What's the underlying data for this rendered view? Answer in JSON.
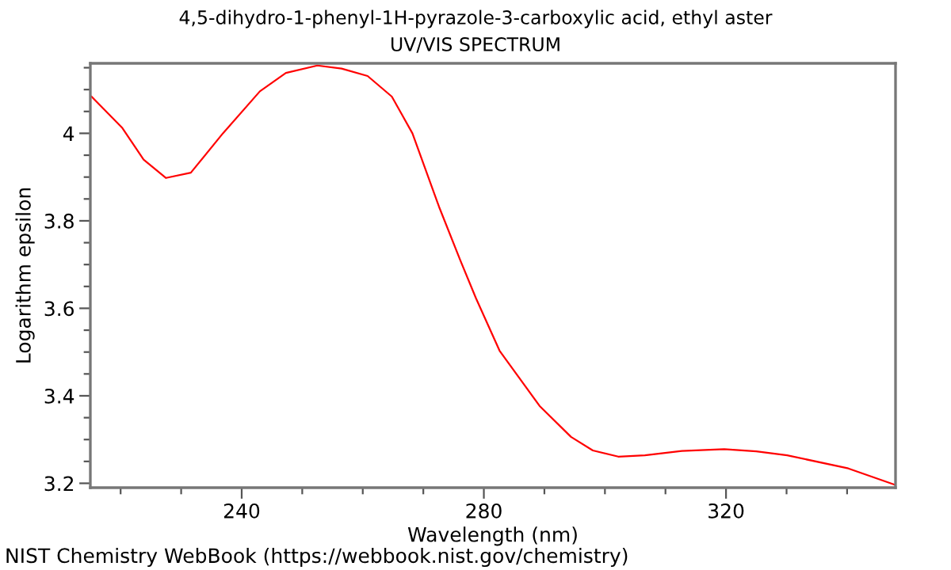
{
  "chart_data": {
    "type": "line",
    "title": "4,5-dihydro-1-phenyl-1H-pyrazole-3-carboxylic acid, ethyl aster",
    "subtitle": "UV/VIS SPECTRUM",
    "xlabel": "Wavelength (nm)",
    "ylabel": "Logarithm epsilon",
    "annotations": [
      "NIST Chemistry WebBook (https://webbook.nist.gov/chemistry)"
    ],
    "series": [
      {
        "color": "#ff0000",
        "x": [
          215.2,
          220.3,
          223.8,
          227.5,
          231.6,
          236.9,
          243,
          247.3,
          252.5,
          256.5,
          260.8,
          264.8,
          268.2,
          272.6,
          276.1,
          278.7,
          282.6,
          289.2,
          294.4,
          298,
          302.2,
          306.6,
          312.7,
          319.7,
          325,
          330.1,
          340.2,
          348
        ],
        "values": [
          4.084,
          4.012,
          3.94,
          3.898,
          3.91,
          4.0,
          4.096,
          4.138,
          4.155,
          4.148,
          4.131,
          4.084,
          4.0,
          3.832,
          3.71,
          3.623,
          3.503,
          3.377,
          3.306,
          3.275,
          3.261,
          3.264,
          3.274,
          3.278,
          3.273,
          3.264,
          3.234,
          3.196
        ]
      }
    ],
    "xlim": [
      215,
      348
    ],
    "ylim": [
      3.19,
      4.16
    ],
    "xticks": [
      {
        "value": 220,
        "label": null
      },
      {
        "value": 230,
        "label": null
      },
      240,
      {
        "value": 250,
        "label": null
      },
      {
        "value": 260,
        "label": null
      },
      {
        "value": 270,
        "label": null
      },
      280,
      {
        "value": 290,
        "label": null
      },
      {
        "value": 300,
        "label": null
      },
      {
        "value": 310,
        "label": null
      },
      320,
      {
        "value": 330,
        "label": null
      },
      {
        "value": 340,
        "label": null
      }
    ],
    "yticks": [
      3.2,
      {
        "value": 3.25,
        "label": null
      },
      {
        "value": 3.3,
        "label": null
      },
      {
        "value": 3.35,
        "label": null
      },
      3.4,
      {
        "value": 3.45,
        "label": null
      },
      {
        "value": 3.5,
        "label": null
      },
      {
        "value": 3.55,
        "label": null
      },
      3.6,
      {
        "value": 3.65,
        "label": null
      },
      {
        "value": 3.7,
        "label": null
      },
      {
        "value": 3.75,
        "label": null
      },
      3.8,
      {
        "value": 3.85,
        "label": null
      },
      {
        "value": 3.9,
        "label": null
      },
      {
        "value": 3.95,
        "label": null
      },
      4,
      {
        "value": 4.05,
        "label": null
      },
      {
        "value": 4.1,
        "label": null
      },
      {
        "value": 4.15,
        "label": null
      }
    ],
    "line_style": "solid",
    "marker": "none"
  }
}
